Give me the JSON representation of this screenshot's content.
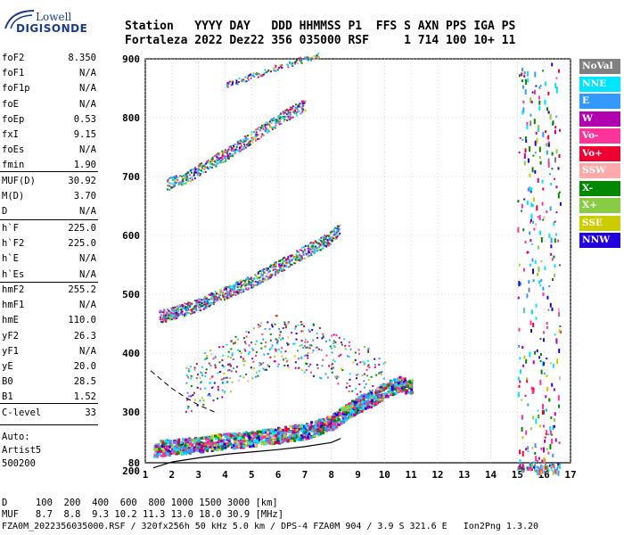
{
  "logo": {
    "line1": "Lowell",
    "line2": "DIGISONDE"
  },
  "header": {
    "labels": "Station   YYYY DAY   DDD HHMMSS P1  FFS S AXN PPS IGA PS",
    "values": "Fortaleza 2022 Dez22 356 035000 RSF     1 714 100 10+ 11"
  },
  "params_group1": [
    {
      "name": "foF2",
      "value": "8.350"
    },
    {
      "name": "foF1",
      "value": "N/A"
    },
    {
      "name": "foF1p",
      "value": "N/A"
    },
    {
      "name": "foE",
      "value": "N/A"
    },
    {
      "name": "foEp",
      "value": "0.53"
    },
    {
      "name": "fxI",
      "value": "9.15"
    },
    {
      "name": "foEs",
      "value": "N/A"
    },
    {
      "name": "fmin",
      "value": "1.90"
    }
  ],
  "params_group2": [
    {
      "name": "MUF(D)",
      "value": "30.92"
    },
    {
      "name": "M(D)",
      "value": "3.70"
    },
    {
      "name": "D",
      "value": "N/A"
    }
  ],
  "params_group3": [
    {
      "name": "h`F",
      "value": "225.0"
    },
    {
      "name": "h`F2",
      "value": "225.0"
    },
    {
      "name": "h`E",
      "value": "N/A"
    },
    {
      "name": "h`Es",
      "value": "N/A"
    }
  ],
  "params_group4": [
    {
      "name": "hmF2",
      "value": "255.2"
    },
    {
      "name": "hmF1",
      "value": "N/A"
    },
    {
      "name": "hmE",
      "value": "110.0"
    },
    {
      "name": "yF2",
      "value": "26.3"
    },
    {
      "name": "yF1",
      "value": "N/A"
    },
    {
      "name": "yE",
      "value": "20.0"
    },
    {
      "name": "B0",
      "value": "28.5"
    },
    {
      "name": "B1",
      "value": "1.52"
    }
  ],
  "params_group5": [
    {
      "name": "C-level",
      "value": "33"
    }
  ],
  "autoscale": {
    "line1": "Auto:",
    "line2": "Artist5",
    "line3": "500200"
  },
  "legend": [
    {
      "label": "NoVal",
      "color": "#808080"
    },
    {
      "label": "NNE",
      "color": "#00e5ff"
    },
    {
      "label": "E",
      "color": "#3399ff"
    },
    {
      "label": "W",
      "color": "#b000b0"
    },
    {
      "label": "Vo-",
      "color": "#ff3399"
    },
    {
      "label": "Vo+",
      "color": "#ee0033"
    },
    {
      "label": "SSW",
      "color": "#ffaaaa"
    },
    {
      "label": "X-",
      "color": "#008800"
    },
    {
      "label": "X+",
      "color": "#88cc44"
    },
    {
      "label": "SSE",
      "color": "#cccc00"
    },
    {
      "label": "NNW",
      "color": "#2200dd"
    }
  ],
  "footer": {
    "d_row": "D     100  200  400  600  800 1000 1500 3000 [km]",
    "muf_row": "MUF   8.7  8.8  9.3 10.2 11.3 13.0 18.0 30.9 [MHz]",
    "file_row": "FZA0M_2022356035000.RSF / 320fx256h 50 kHz 5.0 km / DPS-4 FZA0M 904 / 3.9 S 321.6 E   Ion2Png 1.3.20"
  },
  "chart_data": {
    "type": "scatter",
    "x_ticks": [
      "1",
      "2",
      "3",
      "4",
      "5",
      "6",
      "7",
      "8",
      "9",
      "10",
      "11",
      "12",
      "13",
      "14",
      "15",
      "16",
      "17"
    ],
    "y_ticks": [
      "900",
      "800",
      "700",
      "600",
      "500",
      "400",
      "300",
      "200",
      "80"
    ],
    "xlim": [
      1,
      17
    ],
    "ylim": [
      80,
      900
    ],
    "grid": true,
    "legend_position": "right",
    "traces": [
      {
        "name": "F2 trace",
        "x": [
          1.3,
          2,
          3,
          4,
          5,
          6,
          7,
          7.5,
          8,
          8.3,
          8.6,
          9,
          9.5,
          10,
          10.5,
          11
        ],
        "y": [
          235,
          238,
          242,
          248,
          252,
          258,
          265,
          272,
          280,
          290,
          300,
          310,
          320,
          335,
          345,
          340
        ]
      },
      {
        "name": "2F2 trace",
        "x": [
          1.5,
          2,
          3,
          4,
          5,
          6,
          7,
          8,
          8.3
        ],
        "y": [
          460,
          465,
          480,
          500,
          520,
          545,
          570,
          595,
          610
        ]
      },
      {
        "name": "3F2 trace",
        "x": [
          1.8,
          2.5,
          3,
          4,
          5,
          6,
          7
        ],
        "y": [
          685,
          695,
          710,
          735,
          765,
          795,
          820
        ]
      },
      {
        "name": "4F2 trace",
        "x": [
          4,
          5,
          6,
          7,
          7.5
        ],
        "y": [
          855,
          870,
          885,
          900,
          905
        ]
      },
      {
        "name": "Es/F spread",
        "x": [
          2.5,
          3,
          4,
          5,
          6,
          7,
          8,
          9,
          10
        ],
        "y": [
          320,
          340,
          360,
          390,
          410,
          400,
          380,
          360,
          340
        ]
      }
    ],
    "interference_band": {
      "x_min": 15,
      "x_max": 16.6
    },
    "profile_curve": {
      "x": [
        1.3,
        2,
        3,
        4,
        5,
        6,
        7,
        8,
        8.35
      ],
      "y": [
        205,
        215,
        222,
        228,
        232,
        236,
        241,
        248,
        255
      ]
    },
    "dashed_curve": {
      "x": [
        1.2,
        1.6,
        2.0,
        2.5,
        3.0,
        3.6
      ],
      "y": [
        370,
        355,
        340,
        325,
        312,
        300
      ]
    }
  }
}
